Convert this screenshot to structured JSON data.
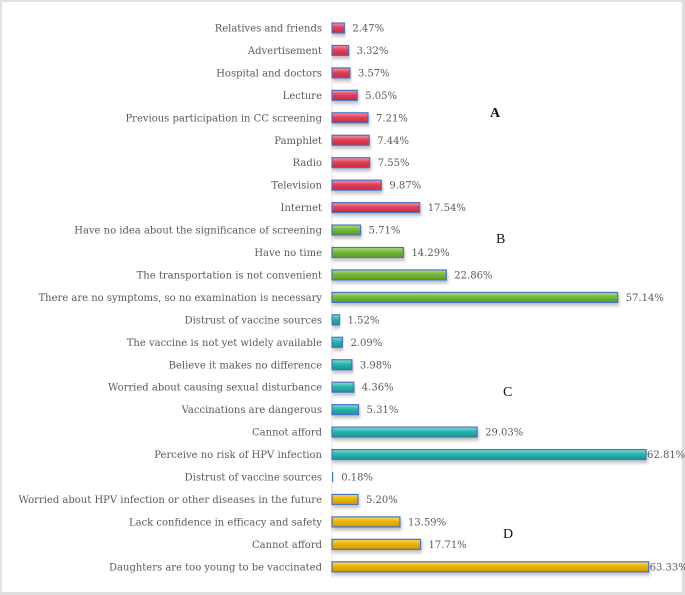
{
  "chart_data": {
    "type": "bar",
    "orientation": "horizontal",
    "title": "",
    "xlabel": "",
    "ylabel": "",
    "xlim": [
      0,
      65
    ],
    "grid": false,
    "legend": "none",
    "value_format": "percent",
    "colors": {
      "A": "#e0364f",
      "B": "#6fb52f",
      "C": "#1fb0a8",
      "D": "#e9b100",
      "bar_border": "#4a6fc7"
    },
    "panels": [
      {
        "name": "A",
        "bold": true,
        "categories": [
          "Relatives and friends",
          "Advertisement",
          "Hospital and doctors",
          "Lecture",
          "Previous participation in CC screening",
          "Pamphlet",
          "Radio",
          "Television",
          "Internet"
        ],
        "values": [
          2.47,
          3.32,
          3.57,
          5.05,
          7.21,
          7.44,
          7.55,
          9.87,
          17.54
        ]
      },
      {
        "name": "B",
        "bold": false,
        "categories": [
          "Have no idea about the significance of screening",
          "Have no time",
          "The transportation is not convenient",
          "There are no symptoms, so no examination is necessary"
        ],
        "values": [
          5.71,
          14.29,
          22.86,
          57.14
        ]
      },
      {
        "name": "C",
        "bold": false,
        "categories": [
          "Distrust of vaccine sources",
          "The vaccine is not yet widely available",
          "Believe it makes no difference",
          "Worried about causing sexual disturbance",
          "Vaccinations are dangerous",
          "Cannot afford",
          "Perceive no risk of HPV infection"
        ],
        "values": [
          1.52,
          2.09,
          3.98,
          4.36,
          5.31,
          29.03,
          62.81
        ]
      },
      {
        "name": "D",
        "bold": false,
        "categories": [
          "Distrust of vaccine sources",
          "Worried about HPV infection or other diseases in the future",
          "Lack confidence in efficacy and safety",
          "Cannot afford",
          "Daughters are too young to be vaccinated"
        ],
        "values": [
          0.18,
          5.2,
          13.59,
          17.71,
          63.33
        ]
      }
    ],
    "value_labels": [
      [
        "2.47%",
        "3.32%",
        "3.57%",
        "5.05%",
        "7.21%",
        "7.44%",
        "7.55%",
        "9.87%",
        "17.54%"
      ],
      [
        "5.71%",
        "14.29%",
        "22.86%",
        "57.14%"
      ],
      [
        "1.52%",
        "2.09%",
        "3.98%",
        "4.36%",
        "5.31%",
        "29.03%",
        "62.81%"
      ],
      [
        "0.18%",
        "5.20%",
        "13.59%",
        "17.71%",
        "63.33%"
      ]
    ]
  }
}
